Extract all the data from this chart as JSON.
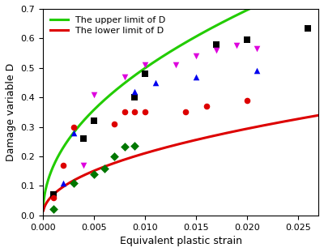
{
  "xlabel": "Equivalent plastic strain",
  "ylabel": "Damage variable D",
  "xlim": [
    0.0,
    0.027
  ],
  "ylim": [
    0.0,
    0.7
  ],
  "xticks": [
    0.0,
    0.005,
    0.01,
    0.015,
    0.02,
    0.025
  ],
  "yticks": [
    0.0,
    0.1,
    0.2,
    0.3,
    0.4,
    0.5,
    0.6,
    0.7
  ],
  "upper_curve_label": "The upper limit of D",
  "upper_curve_color": "#22cc00",
  "lower_curve_label": "The lower limit of D",
  "lower_curve_color": "#dd0000",
  "upper_a": 4.55,
  "upper_b": 0.48,
  "lower_a": 1.92,
  "lower_b": 0.48,
  "black_squares": {
    "x": [
      0.001,
      0.004,
      0.005,
      0.009,
      0.01,
      0.017,
      0.02,
      0.026
    ],
    "y": [
      0.07,
      0.26,
      0.32,
      0.4,
      0.48,
      0.58,
      0.595,
      0.633
    ],
    "color": "#000000",
    "marker": "s"
  },
  "red_circles": {
    "x": [
      0.001,
      0.002,
      0.003,
      0.007,
      0.008,
      0.009,
      0.01,
      0.014,
      0.016,
      0.02
    ],
    "y": [
      0.06,
      0.17,
      0.3,
      0.31,
      0.35,
      0.35,
      0.35,
      0.35,
      0.37,
      0.39
    ],
    "color": "#dd0000",
    "marker": "o"
  },
  "blue_triangles_up": {
    "x": [
      0.002,
      0.003,
      0.009,
      0.011,
      0.015,
      0.021
    ],
    "y": [
      0.11,
      0.28,
      0.42,
      0.45,
      0.47,
      0.49
    ],
    "color": "#0000ee",
    "marker": "^"
  },
  "magenta_triangles_down": {
    "x": [
      0.004,
      0.005,
      0.008,
      0.01,
      0.013,
      0.015,
      0.017,
      0.019,
      0.021
    ],
    "y": [
      0.17,
      0.41,
      0.47,
      0.51,
      0.51,
      0.54,
      0.56,
      0.575,
      0.565
    ],
    "color": "#dd00dd",
    "marker": "v"
  },
  "green_diamonds": {
    "x": [
      0.001,
      0.003,
      0.005,
      0.006,
      0.007,
      0.008,
      0.009
    ],
    "y": [
      0.02,
      0.11,
      0.14,
      0.16,
      0.2,
      0.233,
      0.235
    ],
    "color": "#007700",
    "marker": "D"
  }
}
